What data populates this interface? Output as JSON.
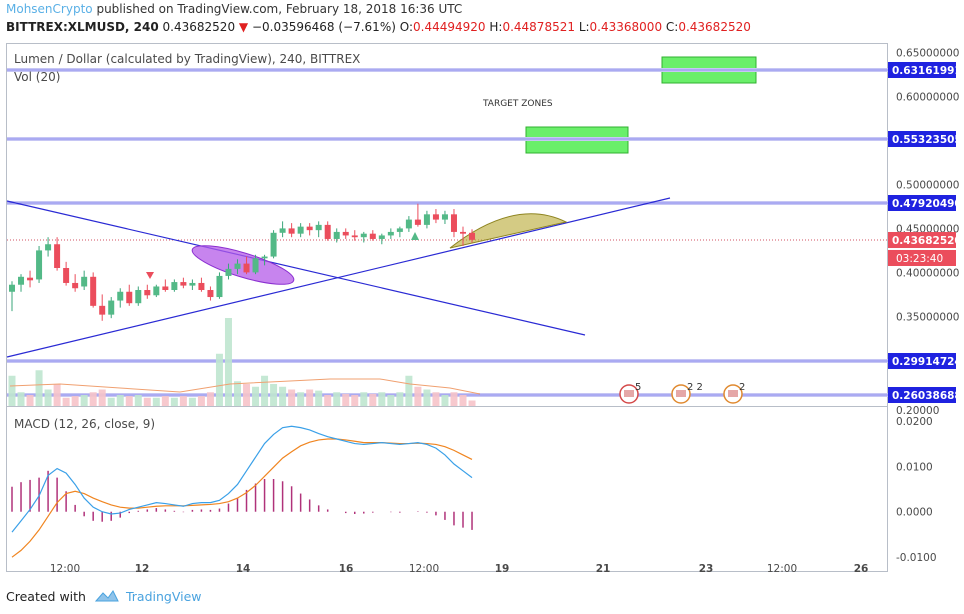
{
  "header": {
    "author": "MohsenCrypto",
    "published_text": "published on TradingView.com, February 18, 2018 16:36 UTC",
    "symbol": "BITTREX:XLMUSD, 240",
    "last_price": "0.43682520",
    "change": "−0.03596468 (−7.61%)",
    "o_label": "O:",
    "o_value": "0.44494920",
    "h_label": "H:",
    "h_value": "0.44878521",
    "l_label": "L:",
    "l_value": "0.43368000",
    "c_label": "C:",
    "c_value": "0.43682520"
  },
  "legend": {
    "main_title": "Lumen / Dollar (calculated by TradingView), 240, BITTREX",
    "volume": "Vol (20)",
    "macd": "MACD (12, 26, close, 9)"
  },
  "annotations": {
    "target_zones": "TARGET ZONES",
    "event_counts": [
      "5",
      "2",
      "2",
      "2"
    ]
  },
  "footer": {
    "created_with": "Created with",
    "brand": "TradingView"
  },
  "colors": {
    "up": "#3aa57a",
    "up_fill": "#53b987",
    "down": "#eb4d5c",
    "trendline": "#2a2ad4",
    "hline": "#8f8ff0",
    "price_label_bg": "#1f22e0",
    "current_price_bg": "#eb4d5c",
    "target_zone": "#6aef6a",
    "ellipse": "#b45be8",
    "arc": "#b8a832",
    "macd_line": "#3aa0e8",
    "signal_line": "#f08520",
    "histogram": "#b0327a"
  },
  "chart_data": {
    "type": "candlestick",
    "price_scale": {
      "ticks": [
        "0.65000000",
        "0.60000000",
        "0.50000000",
        "0.45000000",
        "0.40000000",
        "0.35000000",
        "0.20000"
      ],
      "ylim": [
        0.255,
        0.655
      ]
    },
    "x_ticks": [
      "12:00",
      "12",
      "14",
      "16",
      "12:00",
      "19",
      "21",
      "23",
      "12:00",
      "26"
    ],
    "price_labels": {
      "levels": [
        "0.63161991",
        "0.55323505",
        "0.47920490",
        "0.29914724",
        "0.26038688"
      ],
      "current_price": "0.43682520",
      "countdown": "03:23:40"
    },
    "candles": [
      {
        "o": 0.378,
        "h": 0.39,
        "l": 0.356,
        "c": 0.386
      },
      {
        "o": 0.386,
        "h": 0.398,
        "l": 0.378,
        "c": 0.395
      },
      {
        "o": 0.394,
        "h": 0.402,
        "l": 0.383,
        "c": 0.391
      },
      {
        "o": 0.392,
        "h": 0.43,
        "l": 0.388,
        "c": 0.425
      },
      {
        "o": 0.425,
        "h": 0.44,
        "l": 0.418,
        "c": 0.432
      },
      {
        "o": 0.432,
        "h": 0.44,
        "l": 0.402,
        "c": 0.405
      },
      {
        "o": 0.405,
        "h": 0.412,
        "l": 0.385,
        "c": 0.388
      },
      {
        "o": 0.388,
        "h": 0.398,
        "l": 0.378,
        "c": 0.382
      },
      {
        "o": 0.384,
        "h": 0.402,
        "l": 0.38,
        "c": 0.395
      },
      {
        "o": 0.395,
        "h": 0.4,
        "l": 0.36,
        "c": 0.362
      },
      {
        "o": 0.362,
        "h": 0.375,
        "l": 0.345,
        "c": 0.352
      },
      {
        "o": 0.352,
        "h": 0.372,
        "l": 0.348,
        "c": 0.368
      },
      {
        "o": 0.368,
        "h": 0.382,
        "l": 0.36,
        "c": 0.378
      },
      {
        "o": 0.378,
        "h": 0.386,
        "l": 0.362,
        "c": 0.365
      },
      {
        "o": 0.365,
        "h": 0.384,
        "l": 0.362,
        "c": 0.38
      },
      {
        "o": 0.38,
        "h": 0.386,
        "l": 0.37,
        "c": 0.374
      },
      {
        "o": 0.374,
        "h": 0.386,
        "l": 0.372,
        "c": 0.384
      },
      {
        "o": 0.384,
        "h": 0.392,
        "l": 0.378,
        "c": 0.38
      },
      {
        "o": 0.38,
        "h": 0.392,
        "l": 0.378,
        "c": 0.389
      },
      {
        "o": 0.389,
        "h": 0.394,
        "l": 0.382,
        "c": 0.385
      },
      {
        "o": 0.385,
        "h": 0.392,
        "l": 0.38,
        "c": 0.388
      },
      {
        "o": 0.388,
        "h": 0.394,
        "l": 0.378,
        "c": 0.38
      },
      {
        "o": 0.38,
        "h": 0.384,
        "l": 0.368,
        "c": 0.372
      },
      {
        "o": 0.372,
        "h": 0.4,
        "l": 0.37,
        "c": 0.396
      },
      {
        "o": 0.396,
        "h": 0.41,
        "l": 0.392,
        "c": 0.404
      },
      {
        "o": 0.404,
        "h": 0.415,
        "l": 0.398,
        "c": 0.41
      },
      {
        "o": 0.41,
        "h": 0.418,
        "l": 0.398,
        "c": 0.4
      },
      {
        "o": 0.4,
        "h": 0.42,
        "l": 0.398,
        "c": 0.416
      },
      {
        "o": 0.416,
        "h": 0.42,
        "l": 0.408,
        "c": 0.418
      },
      {
        "o": 0.418,
        "h": 0.448,
        "l": 0.416,
        "c": 0.445
      },
      {
        "o": 0.445,
        "h": 0.458,
        "l": 0.44,
        "c": 0.45
      },
      {
        "o": 0.45,
        "h": 0.456,
        "l": 0.44,
        "c": 0.444
      },
      {
        "o": 0.444,
        "h": 0.456,
        "l": 0.44,
        "c": 0.452
      },
      {
        "o": 0.452,
        "h": 0.456,
        "l": 0.442,
        "c": 0.448
      },
      {
        "o": 0.448,
        "h": 0.458,
        "l": 0.44,
        "c": 0.454
      },
      {
        "o": 0.454,
        "h": 0.458,
        "l": 0.436,
        "c": 0.438
      },
      {
        "o": 0.438,
        "h": 0.45,
        "l": 0.434,
        "c": 0.446
      },
      {
        "o": 0.446,
        "h": 0.45,
        "l": 0.438,
        "c": 0.442
      },
      {
        "o": 0.442,
        "h": 0.448,
        "l": 0.436,
        "c": 0.44
      },
      {
        "o": 0.44,
        "h": 0.446,
        "l": 0.434,
        "c": 0.444
      },
      {
        "o": 0.444,
        "h": 0.448,
        "l": 0.436,
        "c": 0.438
      },
      {
        "o": 0.438,
        "h": 0.444,
        "l": 0.432,
        "c": 0.442
      },
      {
        "o": 0.442,
        "h": 0.45,
        "l": 0.438,
        "c": 0.446
      },
      {
        "o": 0.446,
        "h": 0.452,
        "l": 0.44,
        "c": 0.45
      },
      {
        "o": 0.45,
        "h": 0.464,
        "l": 0.446,
        "c": 0.46
      },
      {
        "o": 0.46,
        "h": 0.478,
        "l": 0.452,
        "c": 0.454
      },
      {
        "o": 0.454,
        "h": 0.47,
        "l": 0.45,
        "c": 0.466
      },
      {
        "o": 0.466,
        "h": 0.472,
        "l": 0.456,
        "c": 0.46
      },
      {
        "o": 0.46,
        "h": 0.47,
        "l": 0.455,
        "c": 0.466
      },
      {
        "o": 0.466,
        "h": 0.472,
        "l": 0.44,
        "c": 0.446
      },
      {
        "o": 0.446,
        "h": 0.452,
        "l": 0.43,
        "c": 0.444
      },
      {
        "o": 0.445,
        "h": 0.449,
        "l": 0.434,
        "c": 0.437
      }
    ],
    "volume": [
      0.55,
      0.25,
      0.2,
      0.65,
      0.3,
      0.4,
      0.15,
      0.18,
      0.2,
      0.25,
      0.3,
      0.15,
      0.2,
      0.18,
      0.2,
      0.15,
      0.15,
      0.18,
      0.15,
      0.18,
      0.15,
      0.18,
      0.25,
      0.95,
      1.6,
      0.45,
      0.4,
      0.35,
      0.55,
      0.4,
      0.35,
      0.3,
      0.25,
      0.3,
      0.28,
      0.2,
      0.25,
      0.22,
      0.2,
      0.25,
      0.22,
      0.25,
      0.2,
      0.25,
      0.55,
      0.35,
      0.3,
      0.25,
      0.2,
      0.25,
      0.2,
      0.1
    ],
    "macd": {
      "ylim": [
        -0.0115,
        0.0215
      ],
      "ticks": [
        "0.0200",
        "0.0100",
        "0.0000",
        "-0.0100"
      ],
      "macd_line": [
        -0.0045,
        -0.002,
        0.0005,
        0.0035,
        0.008,
        0.0095,
        0.0085,
        0.006,
        0.003,
        0.001,
        0.0,
        -0.0005,
        -0.0003,
        0.0005,
        0.001,
        0.0015,
        0.002,
        0.0018,
        0.0015,
        0.0012,
        0.0018,
        0.002,
        0.002,
        0.0025,
        0.004,
        0.006,
        0.009,
        0.012,
        0.015,
        0.017,
        0.0185,
        0.0188,
        0.0185,
        0.018,
        0.0172,
        0.0165,
        0.016,
        0.0155,
        0.015,
        0.0148,
        0.015,
        0.0152,
        0.015,
        0.0148,
        0.015,
        0.0152,
        0.0148,
        0.014,
        0.0125,
        0.0105,
        0.009,
        0.0075
      ],
      "signal_line": [
        -0.01,
        -0.0085,
        -0.0065,
        -0.004,
        -0.001,
        0.002,
        0.004,
        0.0045,
        0.004,
        0.003,
        0.0022,
        0.0015,
        0.001,
        0.0008,
        0.0008,
        0.001,
        0.0012,
        0.0013,
        0.0013,
        0.0013,
        0.0014,
        0.0015,
        0.0016,
        0.0018,
        0.0022,
        0.003,
        0.0042,
        0.0058,
        0.0078,
        0.0098,
        0.0118,
        0.0132,
        0.0145,
        0.0153,
        0.0158,
        0.016,
        0.016,
        0.0158,
        0.0155,
        0.0152,
        0.0152,
        0.0152,
        0.0151,
        0.015,
        0.015,
        0.0151,
        0.015,
        0.0148,
        0.0143,
        0.0135,
        0.0125,
        0.0115
      ],
      "histogram": [
        0.0055,
        0.0065,
        0.007,
        0.0075,
        0.009,
        0.0075,
        0.0045,
        0.0015,
        -0.001,
        -0.002,
        -0.0022,
        -0.002,
        -0.0013,
        -0.0003,
        0.0002,
        0.0005,
        0.0008,
        0.0005,
        0.0002,
        -0.0001,
        0.0004,
        0.0005,
        0.0004,
        0.0007,
        0.0018,
        0.003,
        0.0048,
        0.0062,
        0.0072,
        0.0072,
        0.0067,
        0.0056,
        0.004,
        0.0027,
        0.0014,
        0.0005,
        0.0,
        -0.0003,
        -0.0005,
        -0.0004,
        -0.0002,
        0.0,
        -0.0001,
        -0.0002,
        0.0,
        0.0001,
        -0.0002,
        -0.0008,
        -0.0018,
        -0.003,
        -0.0035,
        -0.004
      ]
    }
  }
}
